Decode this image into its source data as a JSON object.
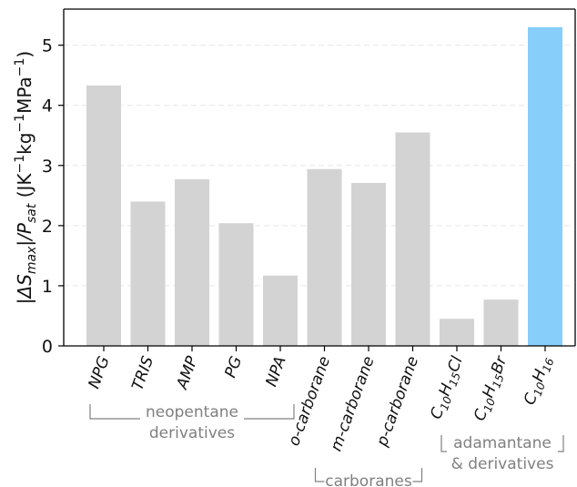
{
  "chart_data": {
    "type": "bar",
    "ylabel": {
      "pre": "|ΔS",
      "sub1": "max",
      "mid": "|/P",
      "sub2": "sat",
      "post": " (JK",
      "sup1": "−1",
      "post2": "kg",
      "sup2": "−1",
      "post3": "MPa",
      "sup3": "−1",
      "post4": ")"
    },
    "xlabel": "",
    "ylim": [
      0,
      5.6
    ],
    "yticks": [
      0,
      1,
      2,
      3,
      4,
      5
    ],
    "grid": "horizontal dashed",
    "categories": [
      {
        "text": "NPG",
        "sub": "",
        "after": "",
        "sub2": ""
      },
      {
        "text": "TRIS",
        "sub": "",
        "after": "",
        "sub2": ""
      },
      {
        "text": "AMP",
        "sub": "",
        "after": "",
        "sub2": ""
      },
      {
        "text": "PG",
        "sub": "",
        "after": "",
        "sub2": ""
      },
      {
        "text": "NPA",
        "sub": "",
        "after": "",
        "sub2": ""
      },
      {
        "text": "o-carborane",
        "sub": "",
        "after": "",
        "sub2": ""
      },
      {
        "text": "m-carborane",
        "sub": "",
        "after": "",
        "sub2": ""
      },
      {
        "text": "p-carborane",
        "sub": "",
        "after": "",
        "sub2": ""
      },
      {
        "text": "C",
        "sub": "10",
        "after": "H",
        "sub2": "15",
        "tail": "Cl"
      },
      {
        "text": "C",
        "sub": "10",
        "after": "H",
        "sub2": "15",
        "tail": "Br"
      },
      {
        "text": "C",
        "sub": "10",
        "after": "H",
        "sub2": "16",
        "tail": ""
      }
    ],
    "values": [
      4.33,
      2.4,
      2.77,
      2.04,
      1.17,
      2.94,
      2.71,
      3.55,
      0.45,
      0.77,
      5.3
    ],
    "colors": [
      "#d3d3d3",
      "#d3d3d3",
      "#d3d3d3",
      "#d3d3d3",
      "#d3d3d3",
      "#d3d3d3",
      "#d3d3d3",
      "#d3d3d3",
      "#d3d3d3",
      "#d3d3d3",
      "#87cefa"
    ],
    "groups": [
      {
        "lines": [
          "neopentane",
          "derivatives"
        ],
        "from": 0,
        "to": 4
      },
      {
        "lines": [
          "carboranes"
        ],
        "from": 5,
        "to": 7
      },
      {
        "lines": [
          "adamantane",
          "& derivatives"
        ],
        "from": 8,
        "to": 10
      }
    ]
  }
}
